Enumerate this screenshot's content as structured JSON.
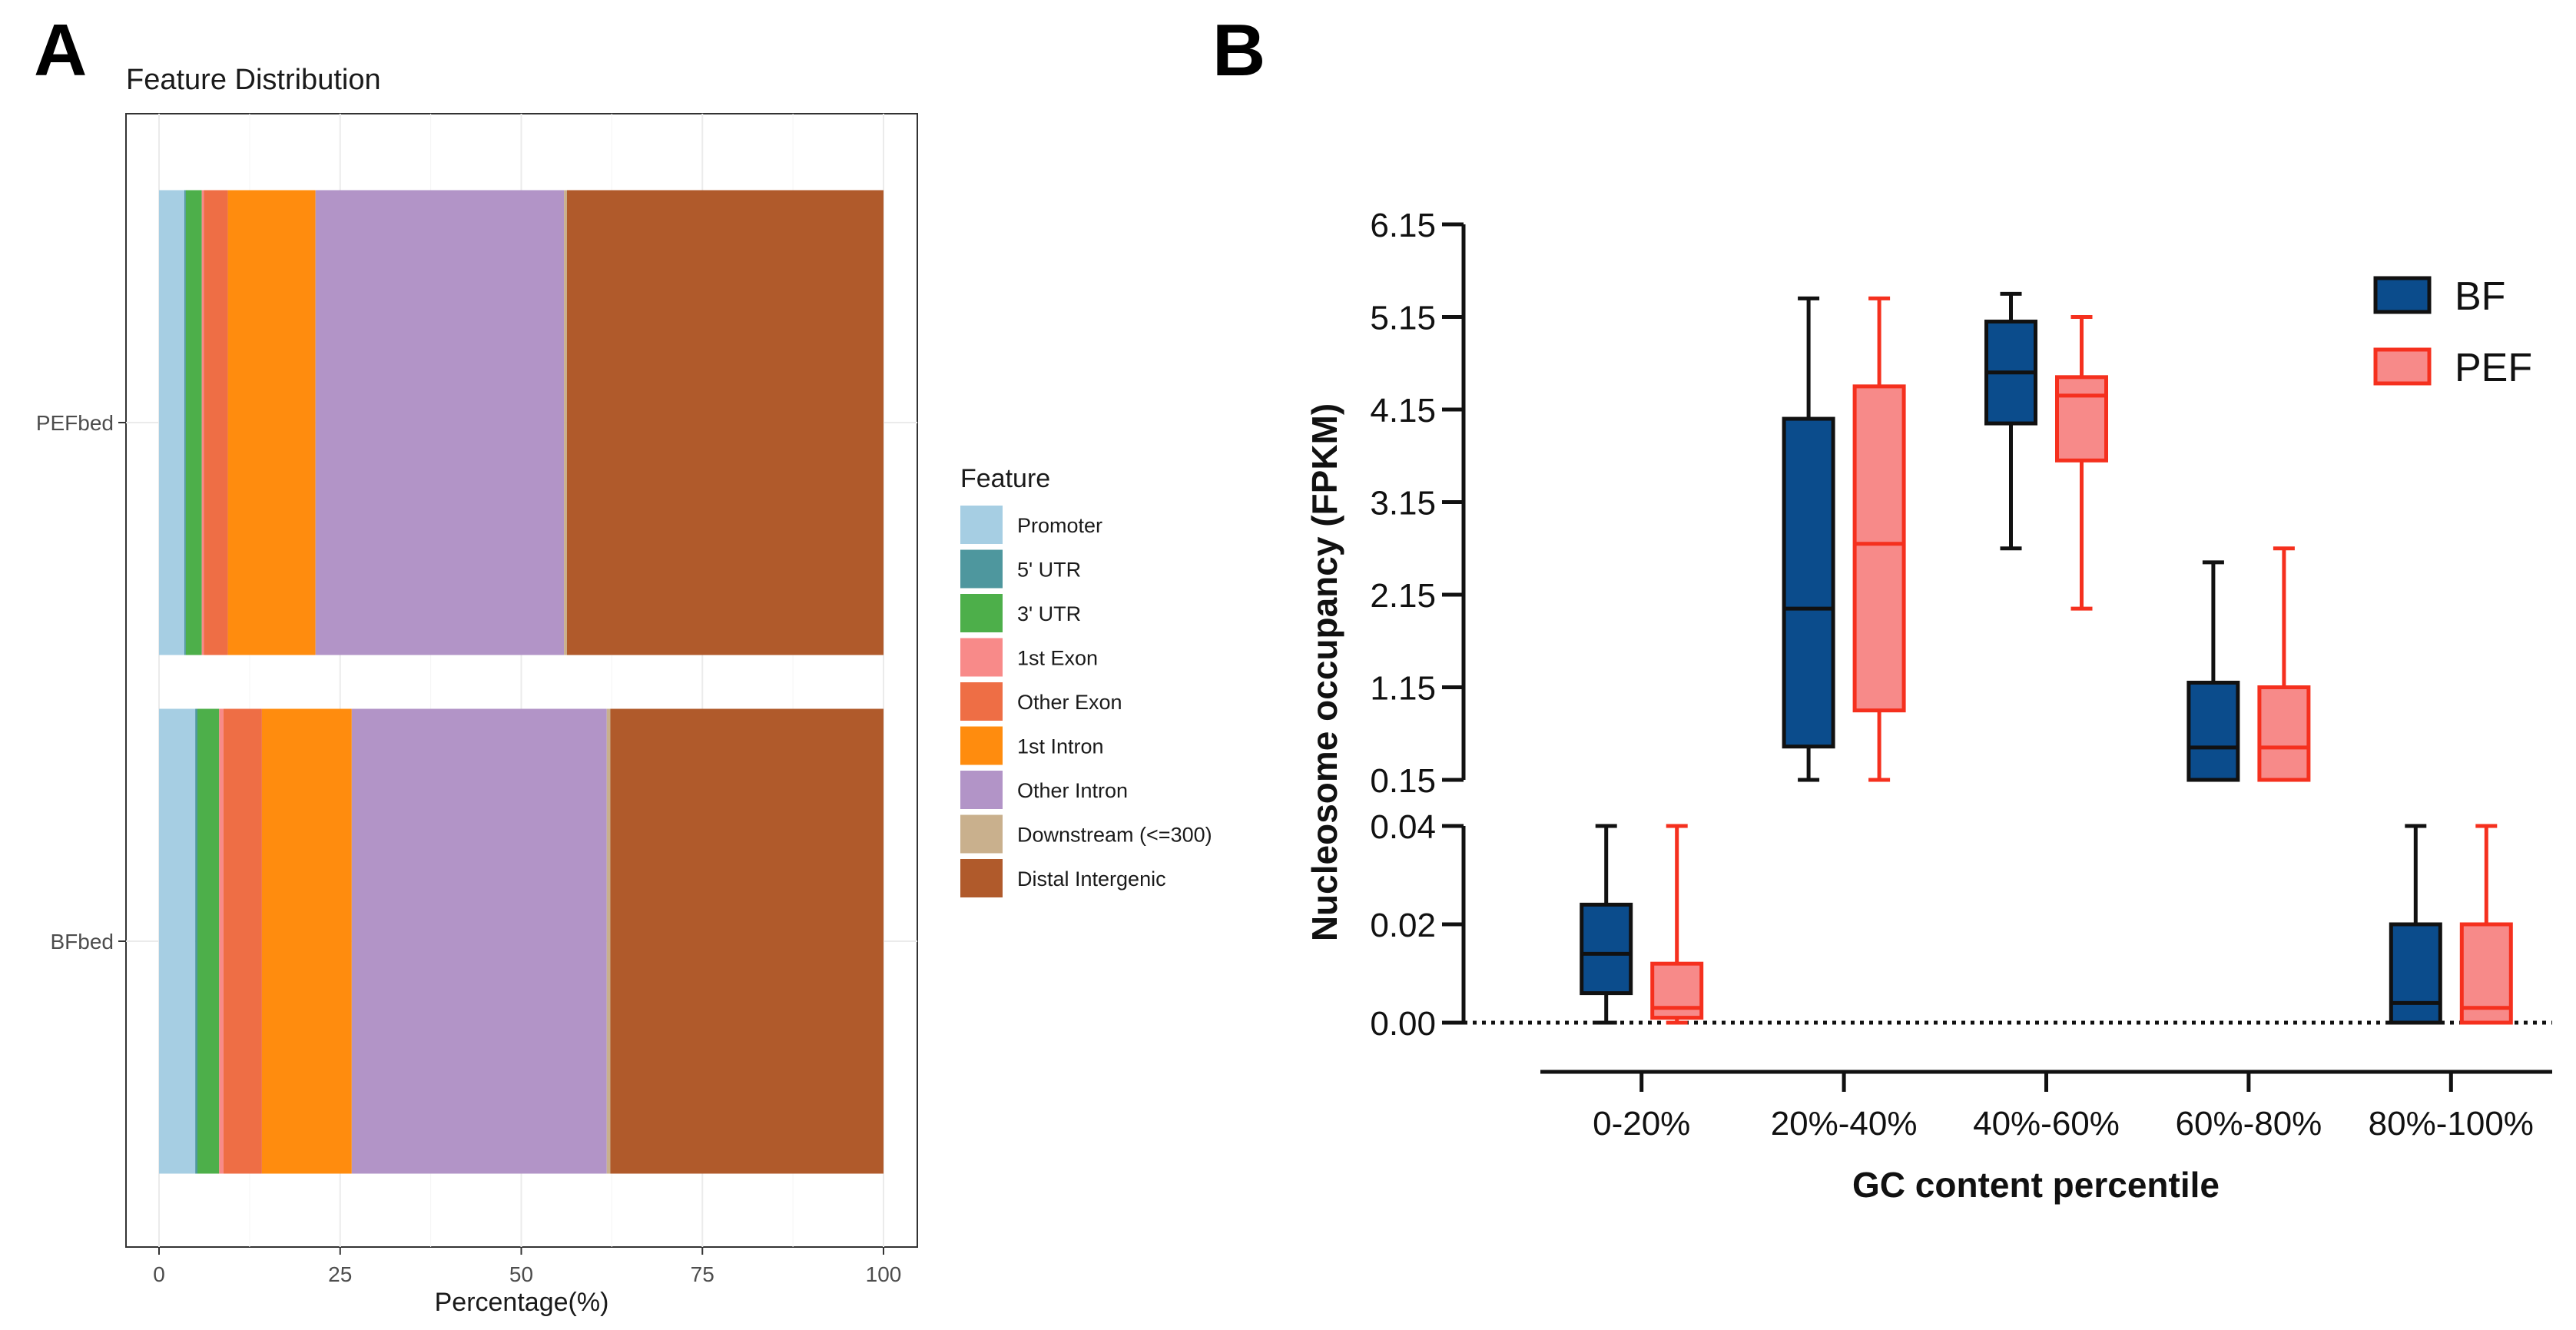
{
  "panels": {
    "a_letter": "A",
    "b_letter": "B"
  },
  "chart_data": [
    {
      "type": "bar",
      "orientation": "horizontal",
      "stacked": true,
      "title": "Feature Distribution",
      "xlabel": "Percentage(%)",
      "ylabel": "",
      "xlim": [
        0,
        100
      ],
      "xticks": [
        "0",
        "25",
        "50",
        "75",
        "100"
      ],
      "categories": [
        "PEFbed",
        "BFbed"
      ],
      "legend_title": "Feature",
      "legend_position": "right",
      "grid": true,
      "series": [
        {
          "name": "Promoter",
          "color": "#A6CEE3",
          "values": [
            3.5,
            5.0
          ]
        },
        {
          "name": "5' UTR",
          "color": "#4E979E",
          "values": [
            0.2,
            0.3
          ]
        },
        {
          "name": "3' UTR",
          "color": "#4DAF4A",
          "values": [
            2.2,
            3.0
          ]
        },
        {
          "name": "1st Exon",
          "color": "#F88A89",
          "values": [
            0.3,
            0.6
          ]
        },
        {
          "name": "Other Exon",
          "color": "#EE6E45",
          "values": [
            3.3,
            5.3
          ]
        },
        {
          "name": "1st Intron",
          "color": "#FF8C0E",
          "values": [
            12.1,
            12.4
          ]
        },
        {
          "name": "Other Intron",
          "color": "#B294C7",
          "values": [
            34.3,
            35.2
          ]
        },
        {
          "name": "Downstream (<=300)",
          "color": "#C9B08D",
          "values": [
            0.4,
            0.5
          ]
        },
        {
          "name": "Distal Intergenic",
          "color": "#B05A2B",
          "values": [
            43.7,
            37.7
          ]
        }
      ]
    },
    {
      "type": "box",
      "xlabel": "GC content percentile",
      "ylabel": "Nucleosome occupancy (FPKM)",
      "categories": [
        "0-20%",
        "20%-40%",
        "40%-60%",
        "60%-80%",
        "80%-100%"
      ],
      "y_axis_broken": true,
      "upper_segment": {
        "ylim": [
          0.15,
          6.15
        ],
        "ticks": [
          "6.15",
          "5.15",
          "4.15",
          "3.15",
          "2.15",
          "1.15",
          "0.15"
        ]
      },
      "lower_segment": {
        "ylim": [
          0.0,
          0.04
        ],
        "ticks": [
          "0.04",
          "0.02",
          "0.00"
        ]
      },
      "reference_line": {
        "y": 0.0,
        "style": "dotted"
      },
      "legend_position": "top-right",
      "series": [
        {
          "name": "BF",
          "fill": "#0B4C8C",
          "stroke": "#111111",
          "boxes": [
            {
              "min": 0.0,
              "q1": 0.006,
              "median": 0.014,
              "q3": 0.024,
              "max": 0.04
            },
            {
              "min": 0.15,
              "q1": 0.51,
              "median": 2.0,
              "q3": 4.05,
              "max": 5.35
            },
            {
              "min": 2.65,
              "q1": 4.0,
              "median": 4.55,
              "q3": 5.1,
              "max": 5.4
            },
            {
              "min": 0.15,
              "q1": 0.15,
              "median": 0.5,
              "q3": 1.2,
              "max": 2.5
            },
            {
              "min": 0.0,
              "q1": 0.0,
              "median": 0.004,
              "q3": 0.02,
              "max": 0.04
            }
          ]
        },
        {
          "name": "PEF",
          "fill": "#F78A89",
          "stroke": "#F5301E",
          "boxes": [
            {
              "min": 0.0,
              "q1": 0.001,
              "median": 0.003,
              "q3": 0.012,
              "max": 0.04
            },
            {
              "min": 0.15,
              "q1": 0.9,
              "median": 2.7,
              "q3": 4.4,
              "max": 5.35
            },
            {
              "min": 2.0,
              "q1": 3.6,
              "median": 4.3,
              "q3": 4.5,
              "max": 5.15
            },
            {
              "min": 0.15,
              "q1": 0.15,
              "median": 0.5,
              "q3": 1.15,
              "max": 2.65
            },
            {
              "min": 0.0,
              "q1": 0.0,
              "median": 0.003,
              "q3": 0.02,
              "max": 0.04
            }
          ]
        }
      ]
    }
  ]
}
